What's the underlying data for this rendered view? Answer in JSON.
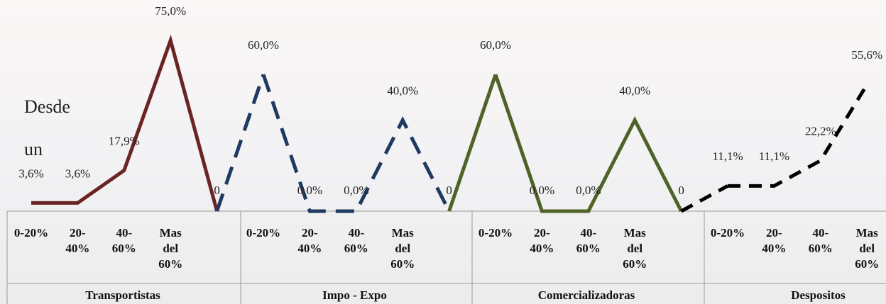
{
  "chart_data": {
    "type": "line",
    "annotation": [
      "Desde",
      "un"
    ],
    "groups": [
      "Transportistas",
      "Impo - Expo",
      "Comercializadoras",
      "Despositos"
    ],
    "categories": [
      "0-20%",
      "20-40%",
      "40-60%",
      "Mas del 60%",
      null,
      "0-20%",
      "20-40%",
      "40-60%",
      "Mas del 60%",
      null,
      "0-20%",
      "20-40%",
      "40-60%",
      "Mas del 60%",
      null,
      "0-20%",
      "20-40%",
      "40-60%",
      "Mas del 60%"
    ],
    "series": [
      {
        "color": "#6b2424",
        "dash": false,
        "values": [
          3.6,
          3.6,
          17.9,
          75.0,
          0,
          null,
          null,
          null,
          null,
          null,
          null,
          null,
          null,
          null,
          null,
          null,
          null,
          null,
          null
        ],
        "value_labels": [
          "3,6%",
          "3,6%",
          "17,9%",
          "75,0%",
          "0",
          null,
          null,
          null,
          null,
          null,
          null,
          null,
          null,
          null,
          null,
          null,
          null,
          null,
          null
        ]
      },
      {
        "color": "#1f3a60",
        "dash": true,
        "values": [
          null,
          null,
          null,
          null,
          null,
          60.0,
          0.0,
          0.0,
          40.0,
          0,
          null,
          null,
          null,
          null,
          null,
          null,
          null,
          null,
          null
        ],
        "value_labels": [
          null,
          null,
          null,
          null,
          null,
          "60,0%",
          "0,0%",
          "0,0%",
          "40,0%",
          "0",
          null,
          null,
          null,
          null,
          null,
          null,
          null,
          null,
          null
        ]
      },
      {
        "color": "#4f6228",
        "dash": false,
        "values": [
          null,
          null,
          null,
          null,
          null,
          null,
          null,
          null,
          null,
          null,
          60.0,
          0.0,
          0.0,
          40.0,
          0,
          null,
          null,
          null,
          null
        ],
        "value_labels": [
          null,
          null,
          null,
          null,
          null,
          null,
          null,
          null,
          null,
          null,
          "60,0%",
          "0,0%",
          "0,0%",
          "40,0%",
          "0",
          null,
          null,
          null,
          null
        ]
      },
      {
        "color": "#000000",
        "dash": true,
        "values": [
          null,
          null,
          null,
          null,
          null,
          null,
          null,
          null,
          null,
          null,
          null,
          null,
          null,
          null,
          null,
          11.1,
          11.1,
          22.2,
          55.6
        ],
        "value_labels": [
          null,
          null,
          null,
          null,
          null,
          null,
          null,
          null,
          null,
          null,
          null,
          null,
          null,
          null,
          null,
          "11,1%",
          "11,1%",
          "22,2%",
          "55,6%"
        ]
      }
    ]
  }
}
